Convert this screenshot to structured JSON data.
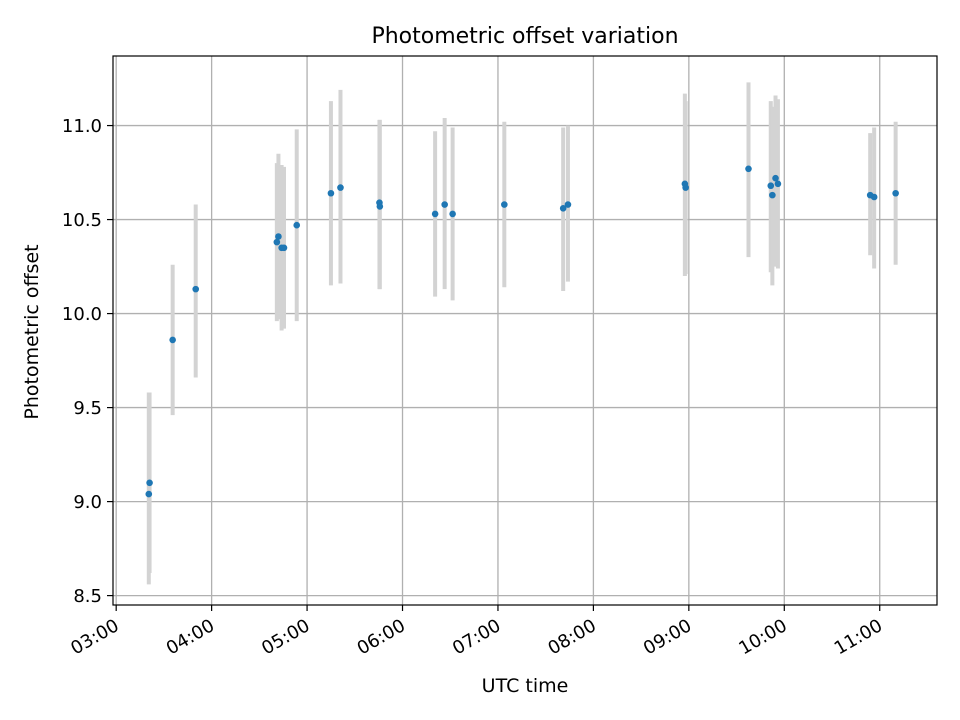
{
  "chart_data": {
    "type": "scatter",
    "title": "Photometric offset variation",
    "xlabel": "UTC time",
    "ylabel": "Photometric offset",
    "x_axis_type": "time",
    "xlim": [
      "02:58",
      "11:36"
    ],
    "ylim": [
      8.45,
      11.37
    ],
    "x_ticks": [
      "03:00",
      "04:00",
      "05:00",
      "06:00",
      "07:00",
      "08:00",
      "09:00",
      "10:00",
      "11:00"
    ],
    "y_ticks": [
      "8.5",
      "9.0",
      "9.5",
      "10.0",
      "10.5",
      "11.0"
    ],
    "grid": true,
    "point_color": "#1f77b4",
    "errorbar_color": "#d3d3d3",
    "points": [
      {
        "t": "03:20:30",
        "y": 9.04,
        "lo": 8.56,
        "hi": 9.58
      },
      {
        "t": "03:21:00",
        "y": 9.1,
        "lo": 8.62,
        "hi": 9.58
      },
      {
        "t": "03:35:30",
        "y": 9.86,
        "lo": 9.46,
        "hi": 10.26
      },
      {
        "t": "03:50:00",
        "y": 10.13,
        "lo": 9.66,
        "hi": 10.58
      },
      {
        "t": "04:41:00",
        "y": 10.38,
        "lo": 9.96,
        "hi": 10.8
      },
      {
        "t": "04:42:00",
        "y": 10.41,
        "lo": 9.97,
        "hi": 10.85
      },
      {
        "t": "04:44:00",
        "y": 10.35,
        "lo": 9.91,
        "hi": 10.79
      },
      {
        "t": "04:45:30",
        "y": 10.35,
        "lo": 9.92,
        "hi": 10.78
      },
      {
        "t": "04:53:30",
        "y": 10.47,
        "lo": 9.96,
        "hi": 10.98
      },
      {
        "t": "05:15:00",
        "y": 10.64,
        "lo": 10.15,
        "hi": 11.13
      },
      {
        "t": "05:21:00",
        "y": 10.67,
        "lo": 10.16,
        "hi": 11.19
      },
      {
        "t": "05:45:30",
        "y": 10.59,
        "lo": 10.13,
        "hi": 11.03
      },
      {
        "t": "05:45:45",
        "y": 10.57,
        "lo": 10.13,
        "hi": 11.03
      },
      {
        "t": "06:20:30",
        "y": 10.53,
        "lo": 10.09,
        "hi": 10.97
      },
      {
        "t": "06:26:30",
        "y": 10.58,
        "lo": 10.13,
        "hi": 11.04
      },
      {
        "t": "06:31:30",
        "y": 10.53,
        "lo": 10.07,
        "hi": 10.99
      },
      {
        "t": "07:04:00",
        "y": 10.58,
        "lo": 10.14,
        "hi": 11.02
      },
      {
        "t": "07:41:00",
        "y": 10.56,
        "lo": 10.12,
        "hi": 10.99
      },
      {
        "t": "07:44:00",
        "y": 10.58,
        "lo": 10.17,
        "hi": 11.0
      },
      {
        "t": "08:57:30",
        "y": 10.69,
        "lo": 10.2,
        "hi": 11.17
      },
      {
        "t": "08:58:00",
        "y": 10.67,
        "lo": 10.21,
        "hi": 11.13
      },
      {
        "t": "09:37:30",
        "y": 10.77,
        "lo": 10.3,
        "hi": 11.23
      },
      {
        "t": "09:51:30",
        "y": 10.68,
        "lo": 10.22,
        "hi": 11.13
      },
      {
        "t": "09:52:30",
        "y": 10.63,
        "lo": 10.15,
        "hi": 11.1
      },
      {
        "t": "09:54:30",
        "y": 10.72,
        "lo": 10.25,
        "hi": 11.16
      },
      {
        "t": "09:56:00",
        "y": 10.69,
        "lo": 10.24,
        "hi": 11.14
      },
      {
        "t": "10:54:00",
        "y": 10.63,
        "lo": 10.31,
        "hi": 10.96
      },
      {
        "t": "10:56:30",
        "y": 10.62,
        "lo": 10.24,
        "hi": 10.99
      },
      {
        "t": "11:10:00",
        "y": 10.64,
        "lo": 10.26,
        "hi": 11.02
      }
    ]
  }
}
